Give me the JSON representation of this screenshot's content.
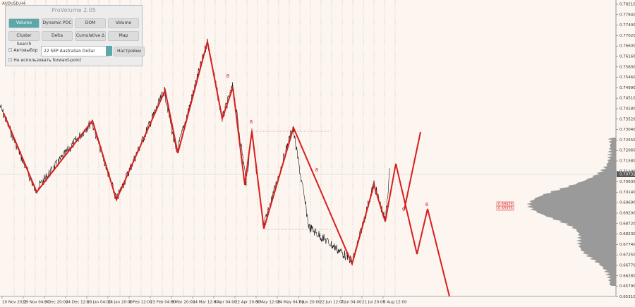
{
  "window": {
    "symbol": "AUDUSD,H4"
  },
  "panel": {
    "title": "ProVolume 2.05",
    "buttons": [
      "Volume Profile",
      "Dynamic POC",
      "DOM",
      "Volume",
      "Cluster Search",
      "Delta",
      "Cumulative Δ",
      "Map"
    ],
    "auto_select": "Автовыбор",
    "instrument": "22 SEP Australian Dollar",
    "settings": "Настройки",
    "forward_point": "Не использовать forward-point"
  },
  "price_axis": {
    "labels": [
      "0.78210",
      "0.77840",
      "0.77400",
      "0.77020",
      "0.76600",
      "0.76160",
      "0.75800",
      "0.75460",
      "0.74990",
      "0.74510",
      "0.74180",
      "0.73520",
      "0.73040",
      "0.72550",
      "0.72060",
      "0.71580",
      "0.71100",
      "0.70630",
      "0.70140",
      "0.69690",
      "0.69200",
      "0.68720",
      "0.68230",
      "0.67740",
      "0.67250",
      "0.66770",
      "0.66280",
      "0.65790",
      "0.65310"
    ],
    "current_price": "0.70731",
    "levels": [
      "0.69439",
      "0.69356"
    ]
  },
  "time_axis": {
    "labels": [
      "10 Nov 2021",
      "29 Nov 04:00",
      "9 Dec 20:00",
      "24 Dec 12:00",
      "10 Jan 04:00",
      "24 Jan 20:00",
      "8 Feb 12:00",
      "23 Feb 04:00",
      "9 Mar 20:00",
      "24 Mar 12:00",
      "8 Apr 04:00",
      "22 Apr 20:00",
      "9 May 12:00",
      "24 May 04:00",
      "7 Jun 20:00",
      "22 Jun 12:00",
      "7 Jul 04:00",
      "21 Jul 20:00",
      "5 Aug 12:00"
    ]
  },
  "annotations": [
    "8",
    "8",
    "8",
    "8",
    "9"
  ]
}
